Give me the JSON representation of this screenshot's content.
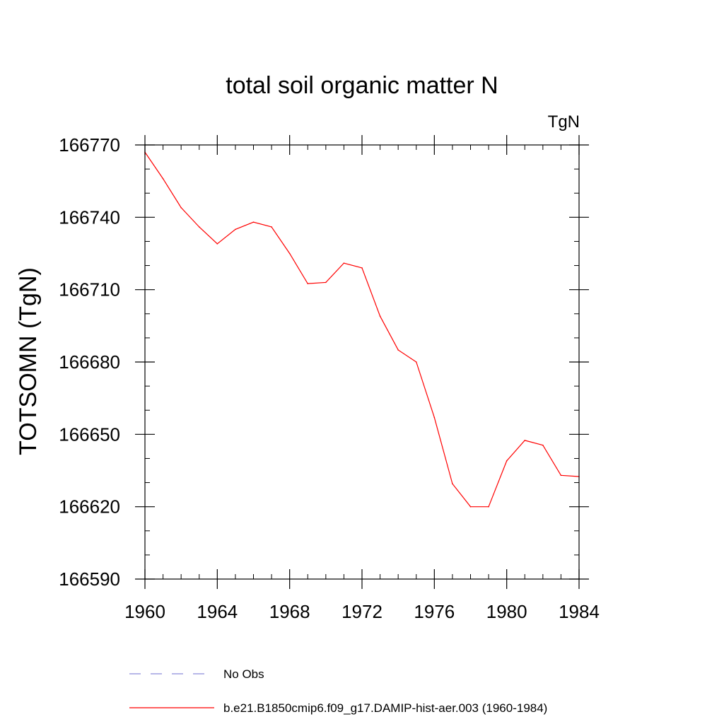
{
  "chart_data": {
    "type": "line",
    "title": "total soil organic matter N",
    "units_label": "TgN",
    "xlabel": "",
    "ylabel": "TOTSOMN  (TgN)",
    "xlim": [
      1960,
      1984
    ],
    "ylim": [
      166590,
      166770
    ],
    "x_ticks": [
      1960,
      1964,
      1968,
      1972,
      1976,
      1980,
      1984
    ],
    "y_ticks": [
      166590,
      166620,
      166650,
      166680,
      166710,
      166740,
      166770
    ],
    "x_tick_labels": [
      "1960",
      "1964",
      "1968",
      "1972",
      "1976",
      "1980",
      "1984"
    ],
    "y_tick_labels": [
      "166590",
      "166620",
      "166650",
      "166680",
      "166710",
      "166740",
      "166770"
    ],
    "x_minor_step": 1,
    "y_minor_step": 10,
    "grid": false,
    "legend_position": "bottom",
    "series": [
      {
        "name": "No Obs",
        "style": "dashed",
        "color": "#8c8cd9",
        "x": [],
        "values": []
      },
      {
        "name": "b.e21.B1850cmip6.f09_g17.DAMIP-hist-aer.003 (1960-1984)",
        "style": "solid",
        "color": "#ff0000",
        "x": [
          1960,
          1961,
          1962,
          1963,
          1964,
          1965,
          1966,
          1967,
          1968,
          1969,
          1970,
          1971,
          1972,
          1973,
          1974,
          1975,
          1976,
          1977,
          1978,
          1979,
          1980,
          1981,
          1982,
          1983,
          1984
        ],
        "values": [
          166767,
          166756,
          166744,
          166736,
          166729,
          166735,
          166738,
          166736,
          166725,
          166712.5,
          166713,
          166721,
          166719,
          166699,
          166685,
          166680,
          166657,
          166629.5,
          166620,
          166620,
          166639,
          166647.5,
          166645.5,
          166633,
          166632.5
        ]
      }
    ]
  }
}
